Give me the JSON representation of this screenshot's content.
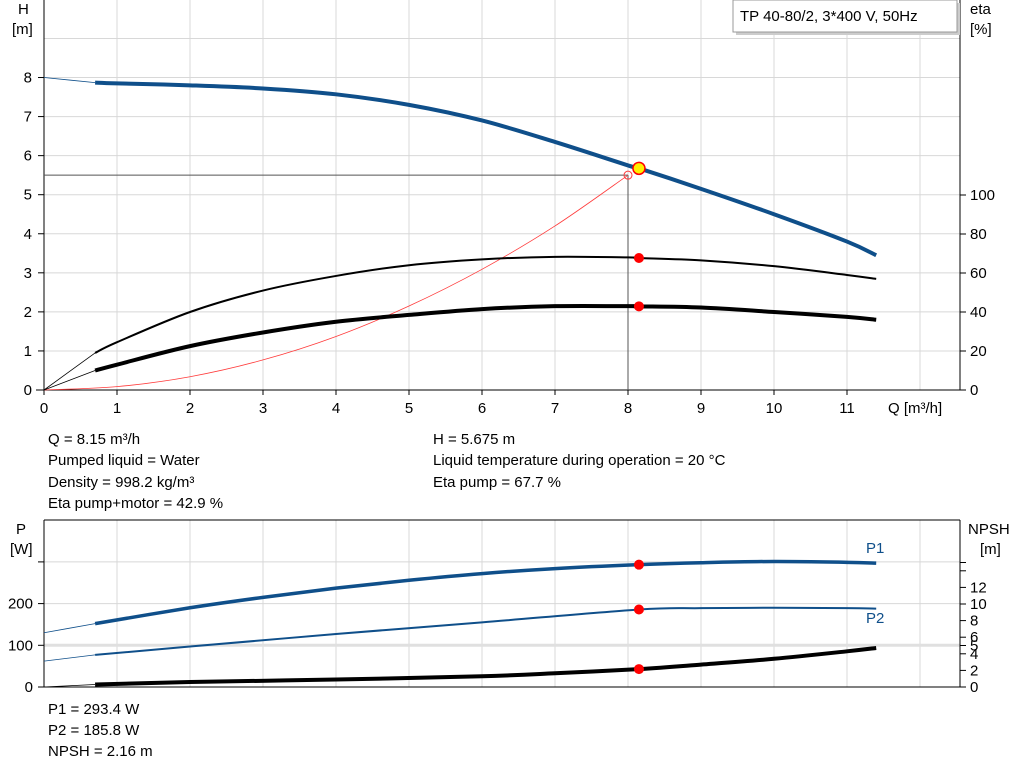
{
  "title_box": "TP 40-80/2, 3*400 V, 50Hz",
  "colors": {
    "head": "#0f4f8a",
    "power": "#0f4f8a",
    "eta": "#000000",
    "system": "#ff3b3b",
    "duty_point": "#ffee00",
    "marker": "#ff0000"
  },
  "chart_data": [
    {
      "type": "line",
      "xlabel": "Q [m³/h]",
      "ylabel": "H\n[m]",
      "ylabel_right": "eta\n[%]",
      "xlim": [
        0,
        12.5
      ],
      "ylim": [
        0,
        10
      ],
      "ylim_right": [
        0,
        200
      ],
      "x_ticks": [
        "0",
        "1",
        "2",
        "3",
        "4",
        "5",
        "6",
        "7",
        "8",
        "9",
        "10",
        "11"
      ],
      "y_ticks": [
        "0",
        "1",
        "2",
        "3",
        "4",
        "5",
        "6",
        "7",
        "8"
      ],
      "y_ticks_right": [
        "0",
        "20",
        "40",
        "60",
        "80",
        "100"
      ],
      "grid": true,
      "series": [
        {
          "id": "head",
          "axis": "left",
          "x": [
            0,
            0.7,
            1,
            2,
            3,
            4,
            5,
            6,
            7,
            8,
            8.15,
            9,
            10,
            11,
            11.4
          ],
          "y": [
            8,
            7.87,
            7.85,
            7.8,
            7.72,
            7.57,
            7.3,
            6.9,
            6.35,
            5.75,
            5.675,
            5.15,
            4.5,
            3.8,
            3.45
          ]
        },
        {
          "id": "eta_pump",
          "axis": "right",
          "x": [
            0,
            0.7,
            1,
            2,
            3,
            4,
            5,
            6,
            7,
            8,
            8.15,
            9,
            10,
            11,
            11.4
          ],
          "y": [
            0,
            19,
            24.5,
            40,
            51,
            58.5,
            64,
            67,
            68.3,
            68,
            67.7,
            66.5,
            63.5,
            59,
            57
          ]
        },
        {
          "id": "eta_pump_motor",
          "axis": "right",
          "x": [
            0,
            0.7,
            1,
            2,
            3,
            4,
            5,
            6,
            7,
            8,
            8.15,
            9,
            10,
            11,
            11.4
          ],
          "y": [
            0,
            10,
            13,
            22.5,
            29.5,
            35,
            38.5,
            41.5,
            43,
            43,
            42.9,
            42.3,
            40,
            37.5,
            36
          ]
        },
        {
          "id": "system_curve",
          "axis": "left",
          "x": [
            0,
            1,
            2,
            3,
            4,
            5,
            6,
            7,
            8
          ],
          "y": [
            0,
            0.086,
            0.34,
            0.77,
            1.37,
            2.15,
            3.09,
            4.2,
            5.5
          ]
        }
      ],
      "duty_point": {
        "q": 8.15,
        "h": 5.675,
        "eta_pump": 67.7,
        "eta_pump_motor": 42.9
      },
      "requested_point": {
        "q": 8,
        "h": 5.5
      }
    },
    {
      "type": "line",
      "ylabel": "P\n[W]",
      "ylabel_right": "NPSH\n[m]",
      "xlim": [
        0,
        12.5
      ],
      "ylim": [
        0,
        400
      ],
      "ylim_right": [
        0,
        20
      ],
      "y_ticks": [
        "0",
        "100",
        "200"
      ],
      "y_ticks_right": [
        "0",
        "2",
        "4",
        "5",
        "6",
        "8",
        "10",
        "12"
      ],
      "grid": true,
      "series": [
        {
          "id": "P1",
          "name": "P1",
          "axis": "left",
          "x": [
            0,
            0.7,
            2,
            3,
            4,
            5,
            6,
            7,
            8.15,
            9,
            10,
            11,
            11.4
          ],
          "y": [
            130,
            152,
            190,
            215,
            237,
            256,
            272,
            284,
            293.4,
            298,
            301,
            299,
            297
          ]
        },
        {
          "id": "P2",
          "name": "P2",
          "axis": "left",
          "x": [
            0,
            0.7,
            2,
            4,
            6,
            8.15,
            9,
            10,
            11,
            11.4
          ],
          "y": [
            62,
            77,
            97,
            127,
            155,
            185.8,
            189,
            190,
            189,
            188
          ]
        },
        {
          "id": "NPSH",
          "axis": "right",
          "x": [
            0,
            0.7,
            2,
            4,
            6,
            7,
            8.15,
            9,
            10,
            11,
            11.4
          ],
          "y": [
            0,
            0.3,
            0.6,
            0.9,
            1.3,
            1.65,
            2.16,
            2.7,
            3.4,
            4.3,
            4.7
          ]
        }
      ],
      "duty_point": {
        "q": 8.15,
        "P1": 293.4,
        "P2": 185.8,
        "NPSH": 2.16
      }
    }
  ],
  "info": {
    "q": "Q = 8.15 m³/h",
    "h": "H = 5.675 m",
    "liquid": "Pumped liquid = Water",
    "temp": "Liquid temperature during operation = 20 °C",
    "density": "Density = 998.2 kg/m³",
    "eta_pump": "Eta pump = 67.7 %",
    "eta_total": "Eta pump+motor = 42.9 %",
    "p1": "P1 = 293.4 W",
    "p2": "P2 = 185.8 W",
    "npsh": "NPSH = 2.16 m"
  }
}
